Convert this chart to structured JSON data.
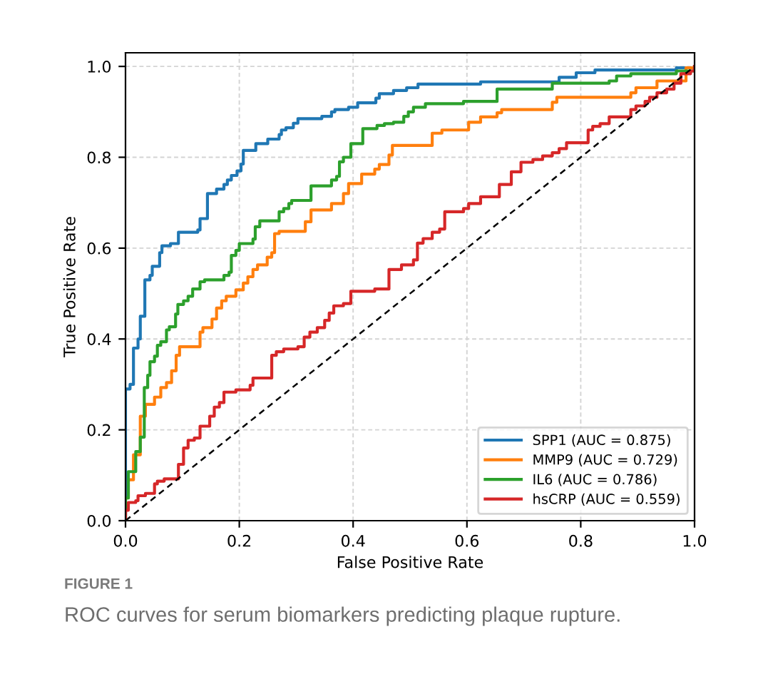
{
  "chart_data": {
    "type": "step",
    "xlabel": "False Positive Rate",
    "ylabel": "True Positive Rate",
    "xlim": [
      0,
      1
    ],
    "ylim": [
      0,
      1.03
    ],
    "xticks": [
      {
        "value": 0,
        "label": "0.0"
      },
      0.2,
      0.4,
      0.6,
      0.8,
      {
        "value": 1,
        "label": "1.0"
      }
    ],
    "yticks": [
      {
        "value": 0,
        "label": "0.0"
      },
      0.2,
      0.4,
      0.6,
      0.8,
      {
        "value": 1,
        "label": "1.0"
      }
    ],
    "grid": true,
    "legend": "bottom right",
    "series": [
      {
        "name": "SPP1 (AUC = 0.875)",
        "color": "#1f77b4",
        "x": [
          0,
          0,
          0.008,
          0.014,
          0.022,
          0.026,
          0.034,
          0.043,
          0.047,
          0.06,
          0.064,
          0.079,
          0.093,
          0.127,
          0.131,
          0.144,
          0.16,
          0.173,
          0.179,
          0.186,
          0.196,
          0.203,
          0.207,
          0.229,
          0.25,
          0.27,
          0.274,
          0.282,
          0.295,
          0.303,
          0.345,
          0.362,
          0.368,
          0.392,
          0.408,
          0.44,
          0.446,
          0.471,
          0.494,
          0.514,
          0.624,
          0.762,
          0.792,
          0.825,
          0.968,
          1.0
        ],
        "values": [
          0,
          0.29,
          0.3,
          0.38,
          0.4,
          0.45,
          0.53,
          0.54,
          0.56,
          0.59,
          0.605,
          0.61,
          0.635,
          0.64,
          0.665,
          0.72,
          0.73,
          0.74,
          0.75,
          0.76,
          0.77,
          0.785,
          0.815,
          0.83,
          0.84,
          0.85,
          0.86,
          0.865,
          0.875,
          0.885,
          0.89,
          0.9,
          0.905,
          0.91,
          0.92,
          0.93,
          0.94,
          0.947,
          0.953,
          0.961,
          0.966,
          0.976,
          0.986,
          0.992,
          0.997,
          1.0
        ]
      },
      {
        "name": "MMP9 (AUC = 0.729)",
        "color": "#ff7f0e",
        "x": [
          0,
          0,
          0.005,
          0.014,
          0.026,
          0.035,
          0.051,
          0.062,
          0.072,
          0.081,
          0.089,
          0.095,
          0.131,
          0.136,
          0.152,
          0.16,
          0.169,
          0.177,
          0.194,
          0.207,
          0.215,
          0.224,
          0.232,
          0.249,
          0.257,
          0.262,
          0.27,
          0.316,
          0.326,
          0.362,
          0.383,
          0.392,
          0.415,
          0.438,
          0.446,
          0.463,
          0.469,
          0.539,
          0.556,
          0.603,
          0.624,
          0.653,
          0.661,
          0.75,
          0.758,
          0.888,
          0.897,
          0.934,
          0.985,
          1.0
        ],
        "values": [
          0,
          0.05,
          0.09,
          0.145,
          0.23,
          0.256,
          0.272,
          0.293,
          0.304,
          0.33,
          0.364,
          0.383,
          0.415,
          0.425,
          0.444,
          0.468,
          0.484,
          0.494,
          0.508,
          0.523,
          0.537,
          0.553,
          0.563,
          0.58,
          0.59,
          0.632,
          0.637,
          0.658,
          0.684,
          0.698,
          0.72,
          0.742,
          0.763,
          0.774,
          0.784,
          0.805,
          0.826,
          0.853,
          0.86,
          0.877,
          0.889,
          0.898,
          0.905,
          0.921,
          0.932,
          0.942,
          0.953,
          0.968,
          0.997,
          1.0
        ]
      },
      {
        "name": "IL6 (AUC = 0.786)",
        "color": "#2ca02c",
        "x": [
          0,
          0,
          0.005,
          0.018,
          0.026,
          0.033,
          0.039,
          0.043,
          0.051,
          0.056,
          0.062,
          0.072,
          0.077,
          0.088,
          0.092,
          0.102,
          0.11,
          0.118,
          0.131,
          0.139,
          0.173,
          0.182,
          0.186,
          0.194,
          0.2,
          0.224,
          0.228,
          0.236,
          0.27,
          0.278,
          0.287,
          0.292,
          0.326,
          0.362,
          0.371,
          0.376,
          0.383,
          0.396,
          0.417,
          0.442,
          0.455,
          0.471,
          0.489,
          0.497,
          0.506,
          0.527,
          0.594,
          0.653,
          0.75,
          0.85,
          0.863,
          0.888,
          0.968,
          1.0
        ],
        "values": [
          0,
          0.05,
          0.108,
          0.152,
          0.184,
          0.293,
          0.32,
          0.35,
          0.362,
          0.386,
          0.394,
          0.42,
          0.427,
          0.455,
          0.476,
          0.484,
          0.494,
          0.51,
          0.526,
          0.53,
          0.54,
          0.547,
          0.584,
          0.595,
          0.61,
          0.62,
          0.647,
          0.66,
          0.68,
          0.687,
          0.698,
          0.705,
          0.737,
          0.75,
          0.758,
          0.79,
          0.8,
          0.83,
          0.863,
          0.87,
          0.874,
          0.877,
          0.89,
          0.9,
          0.91,
          0.918,
          0.923,
          0.95,
          0.963,
          0.968,
          0.979,
          0.984,
          0.99,
          1.0
        ]
      },
      {
        "name": "hsCRP (AUC = 0.559)",
        "color": "#d62728",
        "x": [
          0,
          0,
          0.005,
          0.018,
          0.022,
          0.035,
          0.051,
          0.056,
          0.068,
          0.093,
          0.102,
          0.11,
          0.121,
          0.131,
          0.148,
          0.156,
          0.165,
          0.173,
          0.194,
          0.219,
          0.224,
          0.257,
          0.265,
          0.278,
          0.303,
          0.314,
          0.324,
          0.337,
          0.35,
          0.358,
          0.366,
          0.383,
          0.396,
          0.438,
          0.463,
          0.485,
          0.506,
          0.513,
          0.523,
          0.539,
          0.552,
          0.561,
          0.594,
          0.603,
          0.624,
          0.657,
          0.678,
          0.695,
          0.716,
          0.733,
          0.75,
          0.762,
          0.775,
          0.813,
          0.821,
          0.834,
          0.85,
          0.888,
          0.897,
          0.913,
          0.921,
          0.934,
          0.951,
          0.964,
          0.976,
          0.993,
          1.0
        ],
        "values": [
          0,
          0.023,
          0.04,
          0.044,
          0.055,
          0.06,
          0.081,
          0.087,
          0.092,
          0.124,
          0.16,
          0.177,
          0.182,
          0.208,
          0.23,
          0.25,
          0.26,
          0.283,
          0.288,
          0.298,
          0.314,
          0.364,
          0.372,
          0.378,
          0.383,
          0.404,
          0.415,
          0.425,
          0.441,
          0.457,
          0.473,
          0.478,
          0.505,
          0.51,
          0.553,
          0.563,
          0.574,
          0.611,
          0.621,
          0.635,
          0.642,
          0.68,
          0.687,
          0.698,
          0.713,
          0.74,
          0.768,
          0.789,
          0.795,
          0.803,
          0.81,
          0.819,
          0.832,
          0.86,
          0.868,
          0.874,
          0.889,
          0.905,
          0.913,
          0.923,
          0.932,
          0.942,
          0.95,
          0.963,
          0.984,
          0.99,
          1.0
        ]
      },
      {
        "type": "line",
        "color": "#000000",
        "line_style": "dashed",
        "x": [
          0,
          1
        ],
        "values": [
          0,
          1
        ]
      }
    ],
    "annotations": [
      "FIGURE 1",
      "ROC curves for serum biomarkers predicting plaque rupture."
    ]
  }
}
